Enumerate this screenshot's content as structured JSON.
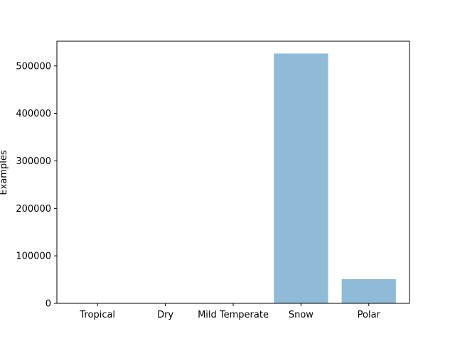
{
  "chart_data": {
    "type": "bar",
    "title": "",
    "xlabel": "",
    "ylabel": "Examples",
    "categories": [
      "Tropical",
      "Dry",
      "Mild Temperate",
      "Snow",
      "Polar"
    ],
    "values": [
      0,
      0,
      0,
      526000,
      51000
    ],
    "ylim": [
      0,
      552000
    ],
    "yticks": [
      0,
      100000,
      200000,
      300000,
      400000,
      500000
    ],
    "ytick_labels": [
      "0",
      "100000",
      "200000",
      "300000",
      "400000",
      "500000"
    ],
    "grid": false,
    "legend": "none",
    "bar_color": "#8fbbd9"
  }
}
